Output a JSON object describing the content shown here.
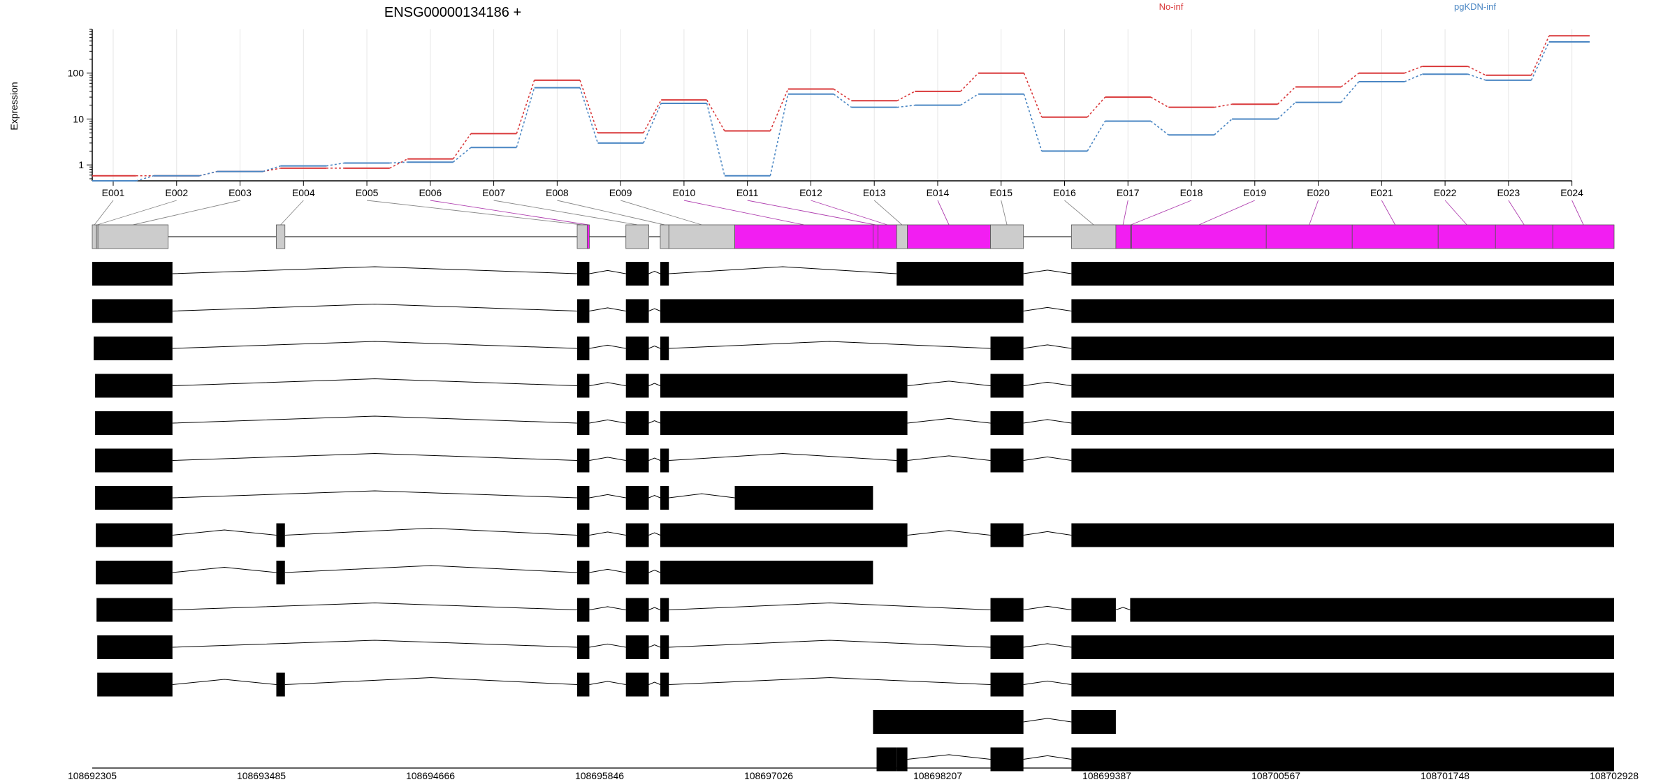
{
  "chart_data": {
    "type": "line",
    "title": "ENSG00000134186 +",
    "ylabel": "Expression",
    "xlabel": "",
    "y_scale": "log",
    "ylim": [
      0.45,
      900
    ],
    "y_ticks": [
      1,
      10,
      100
    ],
    "y_tick_labels": [
      "1",
      "10",
      "100"
    ],
    "grid": true,
    "legend_placement": "top",
    "colors": {
      "No-inf": "#d9383a",
      "pgKDN-inf": "#4a86c3",
      "highlight_exon": "#f21ef2",
      "exon": "#cccccc",
      "transcript": "#000000"
    },
    "categories": [
      "E001",
      "E002",
      "E003",
      "E004",
      "E005",
      "E006",
      "E007",
      "E008",
      "E009",
      "E010",
      "E011",
      "E012",
      "E013",
      "E014",
      "E015",
      "E016",
      "E017",
      "E018",
      "E019",
      "E020",
      "E021",
      "E022",
      "E023",
      "E024"
    ],
    "series": [
      {
        "name": "No-inf",
        "color": "#d9383a",
        "values": [
          0.58,
          0.58,
          0.72,
          0.85,
          0.85,
          1.35,
          4.8,
          70,
          5.0,
          26,
          5.5,
          45,
          25,
          40,
          100,
          11,
          30,
          18,
          21,
          50,
          100,
          140,
          90,
          650
        ]
      },
      {
        "name": "pgKDN-inf",
        "color": "#4a86c3",
        "values": [
          0.45,
          0.58,
          0.72,
          0.95,
          1.1,
          1.15,
          2.4,
          48,
          3.0,
          22,
          0.58,
          35,
          18,
          20,
          35,
          2.0,
          9.0,
          4.5,
          10,
          23,
          65,
          95,
          70,
          480
        ]
      }
    ],
    "gene_model": {
      "genomic_axis": {
        "tick_labels": [
          "108692305",
          "108693485",
          "108694666",
          "108695846",
          "108697026",
          "108698207",
          "108699387",
          "108700567",
          "108701748",
          "108702928"
        ],
        "range": [
          108692305,
          108702928
        ]
      },
      "exon_bins": [
        {
          "id": "E001",
          "start": 108692305,
          "end": 108692335,
          "highlight": false
        },
        {
          "id": "E002",
          "start": 108692335,
          "end": 108692345,
          "highlight": false
        },
        {
          "id": "E003",
          "start": 108692345,
          "end": 108692835,
          "highlight": false
        },
        {
          "id": "E004",
          "start": 108693590,
          "end": 108693650,
          "highlight": false
        },
        {
          "id": "E005",
          "start": 108695690,
          "end": 108695760,
          "highlight": false
        },
        {
          "id": "E006",
          "start": 108695760,
          "end": 108695775,
          "highlight": true
        },
        {
          "id": "E007",
          "start": 108696030,
          "end": 108696190,
          "highlight": false
        },
        {
          "id": "E008",
          "start": 108696270,
          "end": 108696330,
          "highlight": false
        },
        {
          "id": "E009",
          "start": 108696330,
          "end": 108696790,
          "highlight": false
        },
        {
          "id": "E010",
          "start": 108696790,
          "end": 108697755,
          "highlight": true
        },
        {
          "id": "E011",
          "start": 108697755,
          "end": 108697790,
          "highlight": true
        },
        {
          "id": "E012",
          "start": 108697790,
          "end": 108697920,
          "highlight": true
        },
        {
          "id": "E013",
          "start": 108697920,
          "end": 108697995,
          "highlight": false
        },
        {
          "id": "E014",
          "start": 108697995,
          "end": 108698575,
          "highlight": true
        },
        {
          "id": "E015",
          "start": 108698575,
          "end": 108698805,
          "highlight": false
        },
        {
          "id": "E016",
          "start": 108699140,
          "end": 108699450,
          "highlight": false
        },
        {
          "id": "E017",
          "start": 108699450,
          "end": 108699550,
          "highlight": true
        },
        {
          "id": "E018",
          "start": 108699550,
          "end": 108699560,
          "highlight": true
        },
        {
          "id": "E019",
          "start": 108699560,
          "end": 108700500,
          "highlight": true
        },
        {
          "id": "E020",
          "start": 108700500,
          "end": 108701100,
          "highlight": true
        },
        {
          "id": "E021",
          "start": 108701100,
          "end": 108701700,
          "highlight": true
        },
        {
          "id": "E022",
          "start": 108701700,
          "end": 108702100,
          "highlight": true
        },
        {
          "id": "E023",
          "start": 108702100,
          "end": 108702500,
          "highlight": true
        },
        {
          "id": "E024",
          "start": 108702500,
          "end": 108702928,
          "highlight": true
        }
      ],
      "transcripts": [
        [
          [
            108692305,
            108692865
          ],
          [
            108695690,
            108695775
          ],
          [
            108696030,
            108696190
          ],
          [
            108696270,
            108696330
          ],
          [
            108697920,
            108698805
          ],
          [
            108699140,
            108702928
          ]
        ],
        [
          [
            108692305,
            108692865
          ],
          [
            108695690,
            108695775
          ],
          [
            108696030,
            108696190
          ],
          [
            108696270,
            108698805
          ],
          [
            108699140,
            108702928
          ]
        ],
        [
          [
            108692315,
            108692865
          ],
          [
            108695690,
            108695775
          ],
          [
            108696030,
            108696190
          ],
          [
            108696270,
            108696330
          ],
          [
            108698575,
            108698805
          ],
          [
            108699140,
            108702928
          ]
        ],
        [
          [
            108692325,
            108692865
          ],
          [
            108695690,
            108695775
          ],
          [
            108696030,
            108696190
          ],
          [
            108696270,
            108697995
          ],
          [
            108698575,
            108698805
          ],
          [
            108699140,
            108702928
          ]
        ],
        [
          [
            108692325,
            108692865
          ],
          [
            108695690,
            108695775
          ],
          [
            108696030,
            108696190
          ],
          [
            108696270,
            108697995
          ],
          [
            108698575,
            108698805
          ],
          [
            108699140,
            108702928
          ]
        ],
        [
          [
            108692325,
            108692865
          ],
          [
            108695690,
            108695775
          ],
          [
            108696030,
            108696190
          ],
          [
            108696270,
            108696330
          ],
          [
            108697920,
            108697995
          ],
          [
            108698575,
            108698805
          ],
          [
            108699140,
            108702928
          ]
        ],
        [
          [
            108692325,
            108692865
          ],
          [
            108695690,
            108695775
          ],
          [
            108696030,
            108696190
          ],
          [
            108696270,
            108696330
          ],
          [
            108696790,
            108697755
          ]
        ],
        [
          [
            108692330,
            108692865
          ],
          [
            108693590,
            108693650
          ],
          [
            108695690,
            108695775
          ],
          [
            108696030,
            108696190
          ],
          [
            108696270,
            108697995
          ],
          [
            108698575,
            108698805
          ],
          [
            108699140,
            108702928
          ]
        ],
        [
          [
            108692330,
            108692865
          ],
          [
            108693590,
            108693650
          ],
          [
            108695690,
            108695775
          ],
          [
            108696030,
            108696190
          ],
          [
            108696270,
            108697755
          ]
        ],
        [
          [
            108692335,
            108692865
          ],
          [
            108695690,
            108695775
          ],
          [
            108696030,
            108696190
          ],
          [
            108696270,
            108696330
          ],
          [
            108698575,
            108698805
          ],
          [
            108699140,
            108699450
          ],
          [
            108699550,
            108702928
          ]
        ],
        [
          [
            108692340,
            108692865
          ],
          [
            108695690,
            108695775
          ],
          [
            108696030,
            108696190
          ],
          [
            108696270,
            108696330
          ],
          [
            108698575,
            108698805
          ],
          [
            108699140,
            108702928
          ]
        ],
        [
          [
            108692340,
            108692865
          ],
          [
            108693590,
            108693650
          ],
          [
            108695690,
            108695775
          ],
          [
            108696030,
            108696190
          ],
          [
            108696270,
            108696330
          ],
          [
            108698575,
            108698805
          ],
          [
            108699140,
            108702928
          ]
        ],
        [
          [
            108697755,
            108698805
          ],
          [
            108699140,
            108699450
          ]
        ],
        [
          [
            108697780,
            108697920
          ],
          [
            108697920,
            108697995
          ],
          [
            108698575,
            108698805
          ],
          [
            108699140,
            108702928
          ]
        ]
      ]
    }
  }
}
